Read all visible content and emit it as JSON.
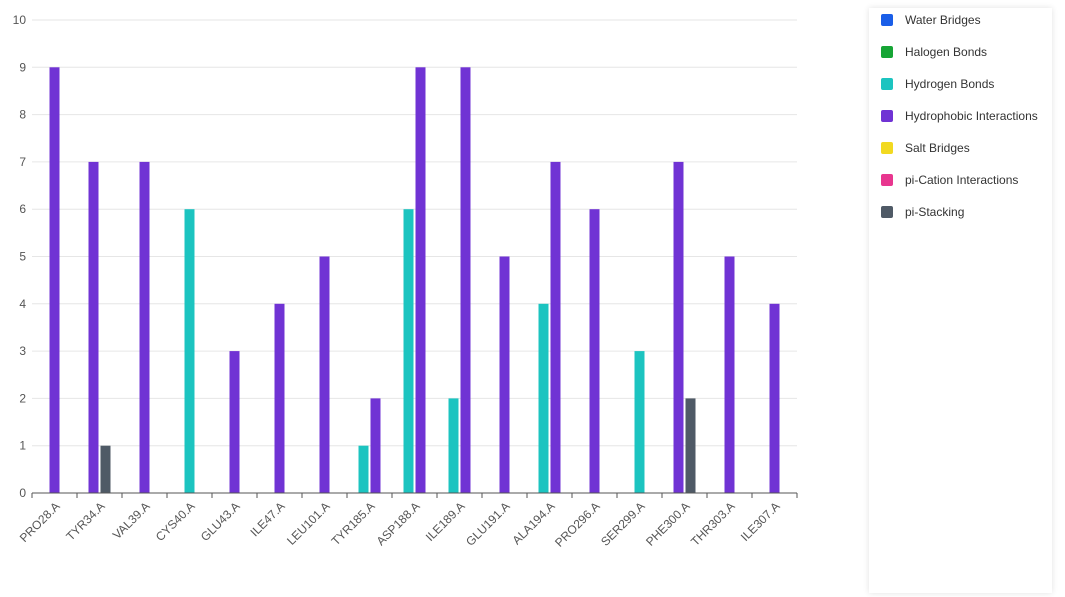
{
  "chart_data": {
    "type": "bar",
    "categories": [
      "PRO28.A",
      "TYR34.A",
      "VAL39.A",
      "CYS40.A",
      "GLU43.A",
      "ILE47.A",
      "LEU101.A",
      "TYR185.A",
      "ASP188.A",
      "ILE189.A",
      "GLU191.A",
      "ALA194.A",
      "PRO296.A",
      "SER299.A",
      "PHE300.A",
      "THR303.A",
      "ILE307.A"
    ],
    "series": [
      {
        "name": "Water Bridges",
        "color": "#1a5ee8",
        "values": [
          0,
          0,
          0,
          0,
          0,
          0,
          0,
          0,
          0,
          0,
          0,
          0,
          0,
          0,
          0,
          0,
          0
        ]
      },
      {
        "name": "Halogen Bonds",
        "color": "#16a535",
        "values": [
          0,
          0,
          0,
          0,
          0,
          0,
          0,
          0,
          0,
          0,
          0,
          0,
          0,
          0,
          0,
          0,
          0
        ]
      },
      {
        "name": "Hydrogen Bonds",
        "color": "#1cc4c0",
        "values": [
          0,
          0,
          0,
          6,
          0,
          0,
          0,
          1,
          6,
          2,
          0,
          4,
          0,
          3,
          0,
          0,
          0
        ]
      },
      {
        "name": "Hydrophobic Interactions",
        "color": "#7033d4",
        "values": [
          9,
          7,
          7,
          0,
          3,
          4,
          5,
          2,
          9,
          9,
          5,
          7,
          6,
          0,
          7,
          5,
          4
        ]
      },
      {
        "name": "Salt Bridges",
        "color": "#f2d920",
        "values": [
          0,
          0,
          0,
          0,
          0,
          0,
          0,
          0,
          0,
          0,
          0,
          0,
          0,
          0,
          0,
          0,
          0
        ]
      },
      {
        "name": "pi-Cation Interactions",
        "color": "#e8368f",
        "values": [
          0,
          0,
          0,
          0,
          0,
          0,
          0,
          0,
          0,
          0,
          0,
          0,
          0,
          0,
          0,
          0,
          0
        ]
      },
      {
        "name": "pi-Stacking",
        "color": "#4f5a66",
        "values": [
          0,
          1,
          0,
          0,
          0,
          0,
          0,
          0,
          0,
          0,
          0,
          0,
          0,
          0,
          2,
          0,
          0
        ]
      }
    ],
    "ylim": [
      0,
      10
    ],
    "yticks": [
      "0",
      "1",
      "2",
      "3",
      "4",
      "5",
      "6",
      "7",
      "8",
      "9",
      "10"
    ],
    "grid": true,
    "legend_placement": "right"
  }
}
